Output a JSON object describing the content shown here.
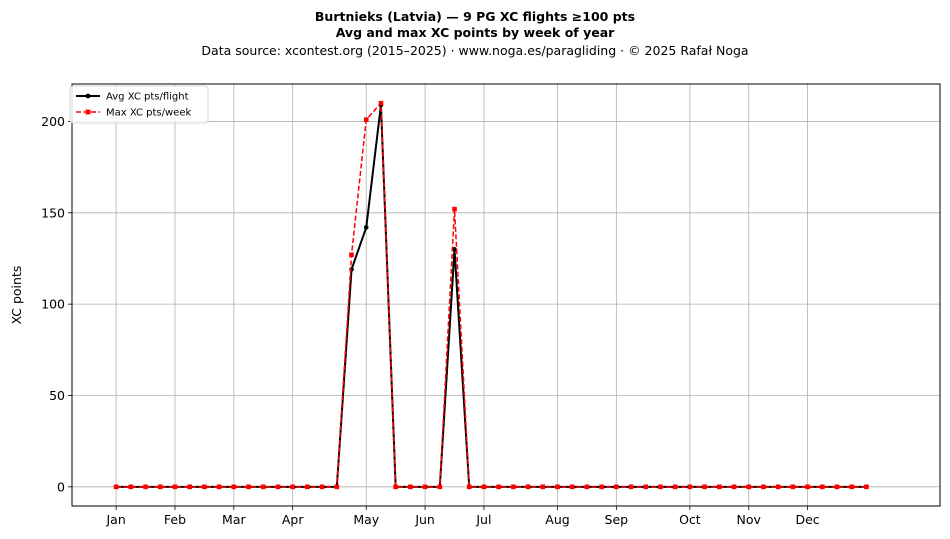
{
  "chart_data": {
    "type": "line",
    "title": "Burtnieks (Latvia)  —  9 PG XC flights ≥100 pts",
    "subtitle": "Avg and max XC points by week of year",
    "source_line": "Data source: xcontest.org (2015–2025)  ·  www.noga.es/paragliding  ·  © 2025 Rafał Noga",
    "xlabel": "",
    "ylabel": "XC points",
    "xlim": [
      -3,
      56
    ],
    "ylim": [
      -10.5,
      220.5
    ],
    "grid": true,
    "legend_position": "top-left",
    "x_ticks": [
      {
        "x": 0,
        "label": "Jan"
      },
      {
        "x": 4,
        "label": "Feb"
      },
      {
        "x": 8,
        "label": "Mar"
      },
      {
        "x": 12,
        "label": "Apr"
      },
      {
        "x": 17,
        "label": "May"
      },
      {
        "x": 21,
        "label": "Jun"
      },
      {
        "x": 25,
        "label": "Jul"
      },
      {
        "x": 30,
        "label": "Aug"
      },
      {
        "x": 34,
        "label": "Sep"
      },
      {
        "x": 39,
        "label": "Oct"
      },
      {
        "x": 43,
        "label": "Nov"
      },
      {
        "x": 47,
        "label": "Dec"
      }
    ],
    "y_ticks": [
      0,
      50,
      100,
      150,
      200
    ],
    "x": [
      0,
      1,
      2,
      3,
      4,
      5,
      6,
      7,
      8,
      9,
      10,
      11,
      12,
      13,
      14,
      15,
      16,
      17,
      18,
      19,
      20,
      21,
      22,
      23,
      24,
      25,
      26,
      27,
      28,
      29,
      30,
      31,
      32,
      33,
      34,
      35,
      36,
      37,
      38,
      39,
      40,
      41,
      42,
      43,
      44,
      45,
      46,
      47,
      48,
      49,
      50,
      51
    ],
    "series": [
      {
        "name": "Avg XC pts/flight",
        "color": "#000000",
        "style": "solid",
        "marker": "circle",
        "values": [
          0,
          0,
          0,
          0,
          0,
          0,
          0,
          0,
          0,
          0,
          0,
          0,
          0,
          0,
          0,
          0,
          119,
          142,
          209,
          0,
          0,
          0,
          0,
          130,
          0,
          0,
          0,
          0,
          0,
          0,
          0,
          0,
          0,
          0,
          0,
          0,
          0,
          0,
          0,
          0,
          0,
          0,
          0,
          0,
          0,
          0,
          0,
          0,
          0,
          0,
          0,
          0
        ]
      },
      {
        "name": "Max XC pts/week",
        "color": "#ff0000",
        "style": "dashed",
        "marker": "square",
        "values": [
          0,
          0,
          0,
          0,
          0,
          0,
          0,
          0,
          0,
          0,
          0,
          0,
          0,
          0,
          0,
          0,
          127,
          201,
          210,
          0,
          0,
          0,
          0,
          152,
          0,
          0,
          0,
          0,
          0,
          0,
          0,
          0,
          0,
          0,
          0,
          0,
          0,
          0,
          0,
          0,
          0,
          0,
          0,
          0,
          0,
          0,
          0,
          0,
          0,
          0,
          0,
          0
        ]
      }
    ]
  }
}
